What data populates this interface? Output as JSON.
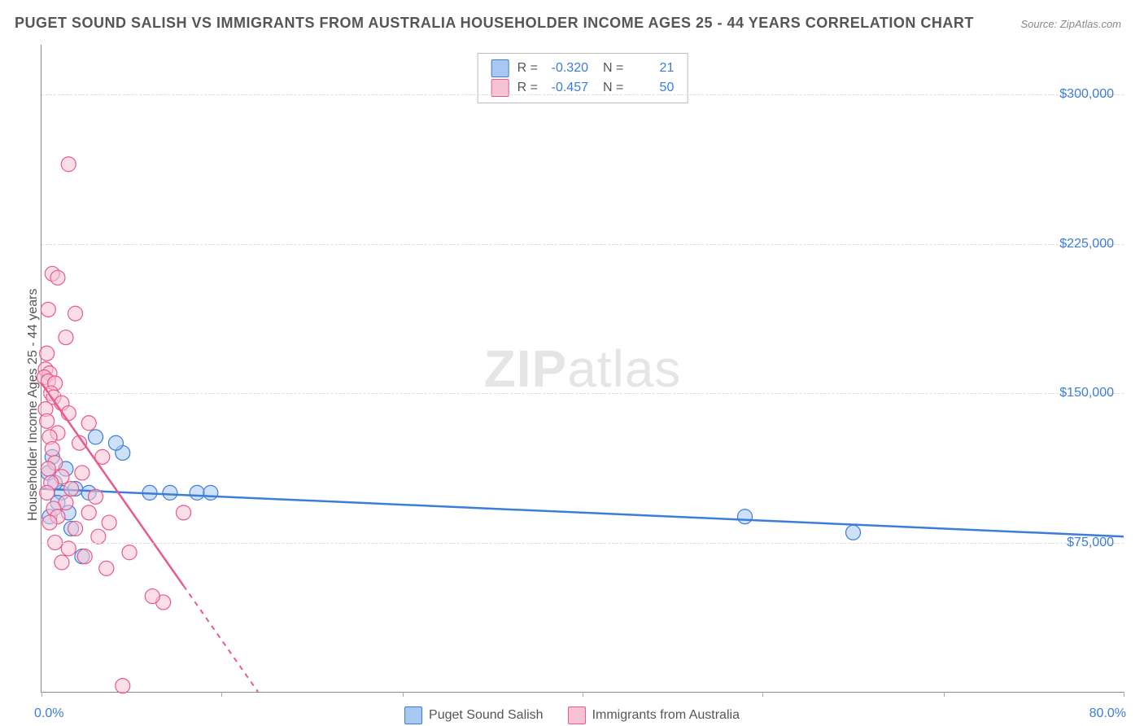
{
  "title": "PUGET SOUND SALISH VS IMMIGRANTS FROM AUSTRALIA HOUSEHOLDER INCOME AGES 25 - 44 YEARS CORRELATION CHART",
  "source_label": "Source: ZipAtlas.com",
  "ylabel": "Householder Income Ages 25 - 44 years",
  "watermark_a": "ZIP",
  "watermark_b": "atlas",
  "axes": {
    "xlim": [
      0,
      80
    ],
    "ylim": [
      0,
      325000
    ],
    "x_ticks_label": {
      "min": "0.0%",
      "max": "80.0%"
    },
    "y_ticks": [
      75000,
      150000,
      225000,
      300000
    ],
    "y_tick_labels": [
      "$75,000",
      "$150,000",
      "$225,000",
      "$300,000"
    ],
    "x_minor_ticks": [
      0,
      13.3,
      26.7,
      40,
      53.3,
      66.7,
      80
    ],
    "grid_color": "#dddddd",
    "axis_color": "#888888",
    "tick_label_color": "#3b7dd8"
  },
  "series": [
    {
      "name": "Puget Sound Salish",
      "color_fill": "#a7c8f2",
      "color_stroke": "#3b7dd8",
      "marker_radius": 9,
      "marker_opacity": 0.55,
      "R": "-0.320",
      "N": "21",
      "trend": {
        "x1": 0,
        "y1": 102000,
        "x2": 80,
        "y2": 78000,
        "dash_after_x": null
      },
      "points": [
        [
          0.5,
          110000
        ],
        [
          1.5,
          100000
        ],
        [
          4.0,
          128000
        ],
        [
          6.0,
          120000
        ],
        [
          1.0,
          105000
        ],
        [
          2.0,
          90000
        ],
        [
          3.0,
          68000
        ],
        [
          0.8,
          118000
        ],
        [
          1.2,
          95000
        ],
        [
          5.5,
          125000
        ],
        [
          8.0,
          100000
        ],
        [
          9.5,
          100000
        ],
        [
          11.5,
          100000
        ],
        [
          12.5,
          100000
        ],
        [
          52.0,
          88000
        ],
        [
          60.0,
          80000
        ],
        [
          2.5,
          102000
        ],
        [
          0.6,
          88000
        ],
        [
          1.8,
          112000
        ],
        [
          3.5,
          100000
        ],
        [
          2.2,
          82000
        ]
      ]
    },
    {
      "name": "Immigrants from Australia",
      "color_fill": "#f7c2d4",
      "color_stroke": "#e85a8a",
      "marker_radius": 9,
      "marker_opacity": 0.55,
      "R": "-0.457",
      "N": "50",
      "trend": {
        "x1": 0,
        "y1": 155000,
        "x2": 16,
        "y2": 0,
        "dash_after_x": 10.5
      },
      "points": [
        [
          2.0,
          265000
        ],
        [
          0.8,
          210000
        ],
        [
          1.2,
          208000
        ],
        [
          0.5,
          192000
        ],
        [
          2.5,
          190000
        ],
        [
          0.4,
          170000
        ],
        [
          1.8,
          178000
        ],
        [
          0.3,
          162000
        ],
        [
          0.6,
          160000
        ],
        [
          0.2,
          158000
        ],
        [
          0.5,
          156000
        ],
        [
          1.0,
          155000
        ],
        [
          0.7,
          150000
        ],
        [
          0.9,
          148000
        ],
        [
          1.5,
          145000
        ],
        [
          0.3,
          142000
        ],
        [
          2.0,
          140000
        ],
        [
          0.4,
          136000
        ],
        [
          3.5,
          135000
        ],
        [
          1.2,
          130000
        ],
        [
          0.6,
          128000
        ],
        [
          2.8,
          125000
        ],
        [
          0.8,
          122000
        ],
        [
          4.5,
          118000
        ],
        [
          1.0,
          115000
        ],
        [
          0.5,
          112000
        ],
        [
          3.0,
          110000
        ],
        [
          1.5,
          108000
        ],
        [
          0.7,
          105000
        ],
        [
          2.2,
          102000
        ],
        [
          0.4,
          100000
        ],
        [
          4.0,
          98000
        ],
        [
          1.8,
          95000
        ],
        [
          0.9,
          92000
        ],
        [
          3.5,
          90000
        ],
        [
          1.2,
          88000
        ],
        [
          0.6,
          85000
        ],
        [
          2.5,
          82000
        ],
        [
          5.0,
          85000
        ],
        [
          4.2,
          78000
        ],
        [
          1.0,
          75000
        ],
        [
          6.5,
          70000
        ],
        [
          2.0,
          72000
        ],
        [
          1.5,
          65000
        ],
        [
          4.8,
          62000
        ],
        [
          3.2,
          68000
        ],
        [
          9.0,
          45000
        ],
        [
          10.5,
          90000
        ],
        [
          6.0,
          3000
        ],
        [
          8.2,
          48000
        ]
      ]
    }
  ],
  "stats_box": {
    "rows": [
      {
        "swatch_fill": "#a7c8f2",
        "swatch_stroke": "#3b7dd8",
        "R_label": "R =",
        "R": "-0.320",
        "N_label": "N =",
        "N": "21"
      },
      {
        "swatch_fill": "#f7c2d4",
        "swatch_stroke": "#e85a8a",
        "R_label": "R =",
        "R": "-0.457",
        "N_label": "N =",
        "N": "50"
      }
    ]
  },
  "legend": [
    {
      "swatch_fill": "#a7c8f2",
      "swatch_stroke": "#3b7dd8",
      "label": "Puget Sound Salish"
    },
    {
      "swatch_fill": "#f7c2d4",
      "swatch_stroke": "#e85a8a",
      "label": "Immigrants from Australia"
    }
  ]
}
